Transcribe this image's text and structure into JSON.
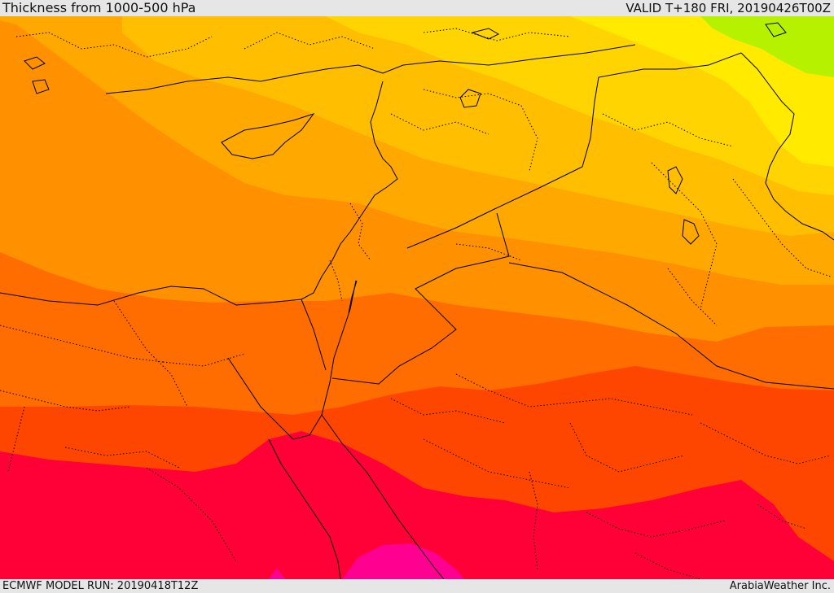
{
  "header": {
    "title": "Thickness from 1000-500 hPa",
    "valid": "VALID T+180 FRI, 20190426T00Z"
  },
  "footer": {
    "model_run": "ECMWF MODEL RUN: 20190418T12Z",
    "credit": "ArabiaWeather Inc."
  },
  "palette": {
    "green": "#b6f200",
    "yellow_light": "#ffea00",
    "yellow": "#ffd400",
    "amber": "#ffbf00",
    "orange_light": "#ffa800",
    "orange": "#ff9000",
    "orange_dark": "#ff6c00",
    "red_orange": "#ff4600",
    "red": "#ff0037",
    "magenta": "#ff0090",
    "border_color": "#000000"
  }
}
